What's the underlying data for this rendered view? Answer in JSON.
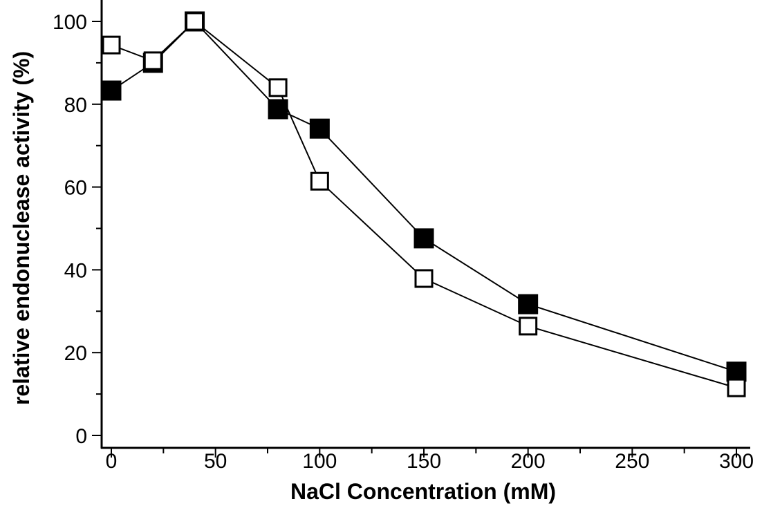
{
  "chart_data": {
    "type": "line",
    "title": "",
    "xlabel": "NaCl Concentration (mM)",
    "ylabel": "relative endonuclease activity (%)",
    "xlim": [
      -5,
      305
    ],
    "ylim": [
      0,
      105
    ],
    "x_ticks": [
      "0",
      "50",
      "100",
      "150",
      "200",
      "250",
      "300"
    ],
    "y_ticks": [
      "0",
      "20",
      "40",
      "60",
      "80",
      "100"
    ],
    "grid": false,
    "x": [
      0,
      20,
      40,
      80,
      100,
      150,
      200,
      300
    ],
    "series": [
      {
        "marker": "filled-square",
        "color": "#000000",
        "values": [
          83.3,
          90,
          100,
          78.8,
          74.1,
          47.6,
          31.7,
          15.4
        ]
      },
      {
        "marker": "open-square",
        "color": "#000000",
        "values": [
          94.3,
          90.5,
          100,
          84,
          61.4,
          37.9,
          26.4,
          11.5
        ]
      }
    ]
  }
}
